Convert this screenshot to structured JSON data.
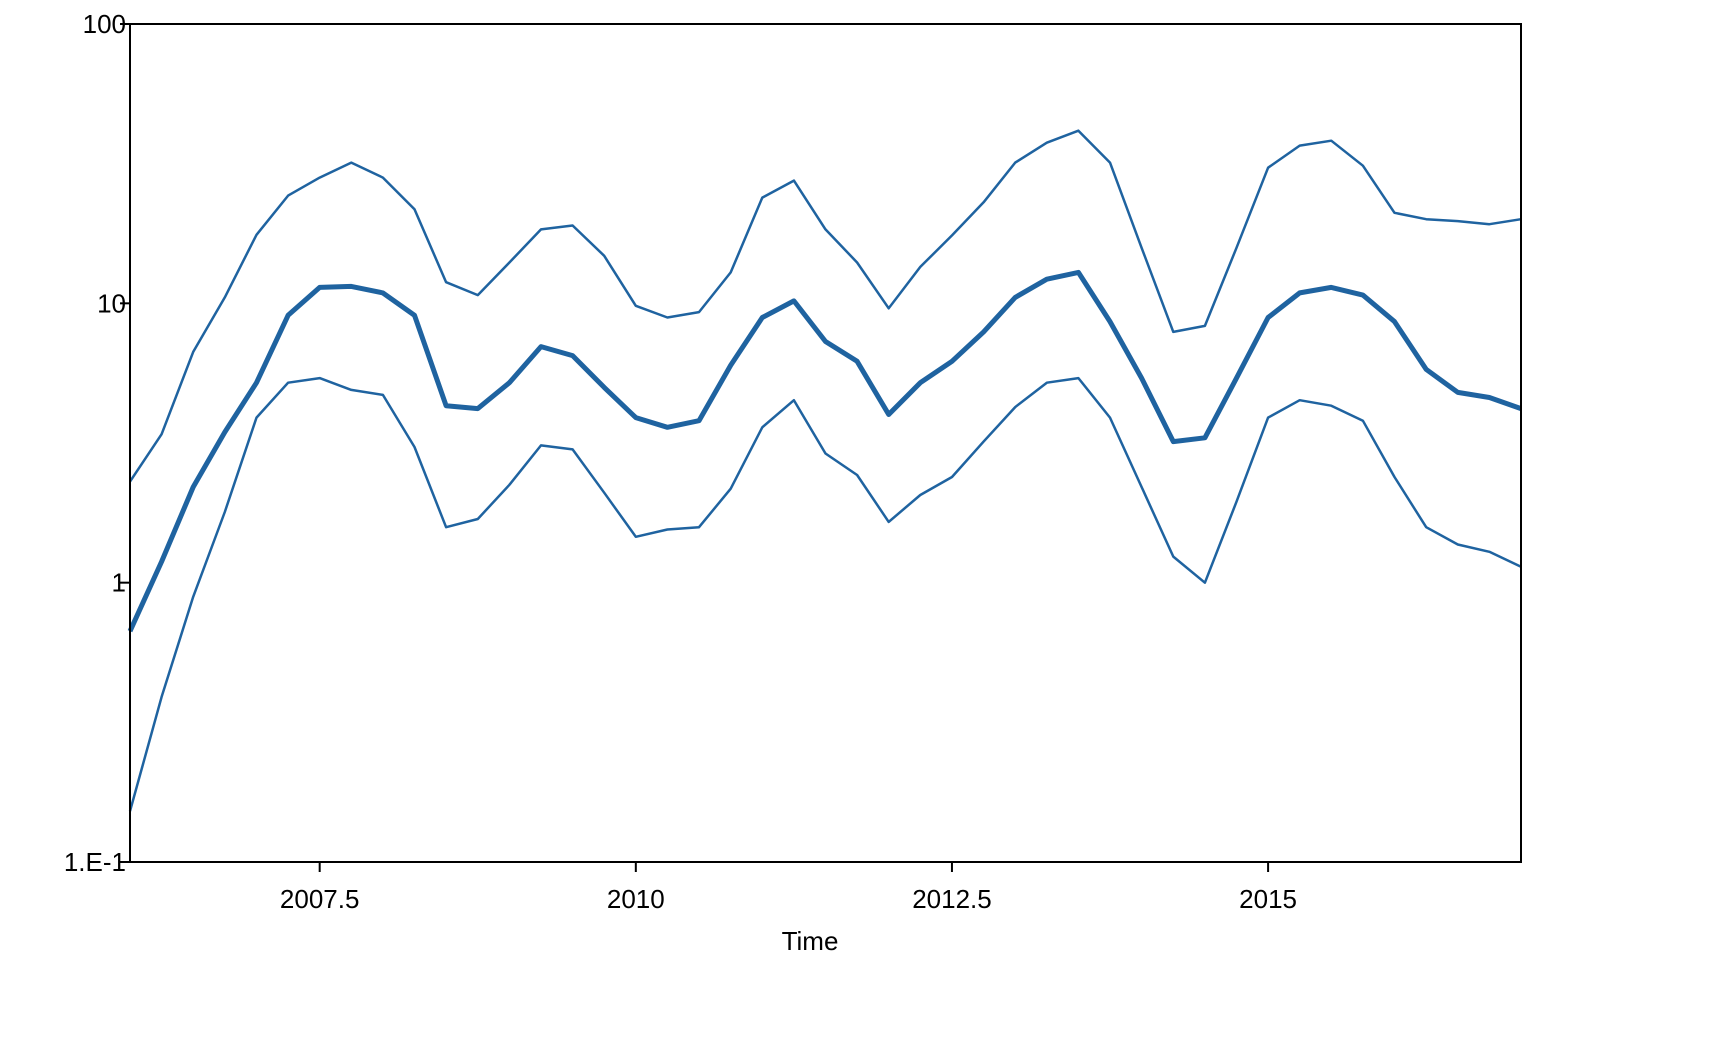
{
  "chart_data": {
    "type": "line",
    "xlabel": "Time",
    "x": [
      2006,
      2006.25,
      2006.5,
      2006.75,
      2007,
      2007.25,
      2007.5,
      2007.75,
      2008,
      2008.25,
      2008.5,
      2008.75,
      2009,
      2009.25,
      2009.5,
      2009.75,
      2010,
      2010.25,
      2010.5,
      2010.75,
      2011,
      2011.25,
      2011.5,
      2011.75,
      2012,
      2012.25,
      2012.5,
      2012.75,
      2013,
      2013.25,
      2013.5,
      2013.75,
      2014,
      2014.25,
      2014.5,
      2014.75,
      2015,
      2015.25,
      2015.5,
      2015.75,
      2016,
      2016.25,
      2016.5,
      2016.75,
      2017
    ],
    "series": [
      {
        "color": "#1f63a0",
        "line_width": 2.5,
        "values": [
          2.3,
          3.4,
          6.7,
          10.5,
          17.6,
          24.3,
          28.2,
          31.9,
          28.2,
          21.7,
          11.9,
          10.7,
          14.0,
          18.4,
          19.0,
          14.8,
          9.8,
          8.9,
          9.3,
          12.9,
          23.9,
          27.5,
          18.4,
          14.0,
          9.6,
          13.5,
          17.5,
          23.0,
          31.9,
          37.6,
          41.5,
          31.9,
          15.8,
          7.9,
          8.3,
          15.8,
          30.6,
          36.7,
          38.2,
          31.1,
          21.1,
          20.0,
          19.7,
          19.2,
          20.0
        ]
      },
      {
        "color": "#1f63a0",
        "line_width": 5,
        "values": [
          0.67,
          1.19,
          2.2,
          3.46,
          5.2,
          9.06,
          11.4,
          11.5,
          10.9,
          9.06,
          4.3,
          4.2,
          5.2,
          7.0,
          6.5,
          5.0,
          3.9,
          3.6,
          3.8,
          6.0,
          8.9,
          10.2,
          7.3,
          6.2,
          4.0,
          5.2,
          6.2,
          7.9,
          10.5,
          12.2,
          12.9,
          8.6,
          5.4,
          3.2,
          3.3,
          5.4,
          8.9,
          10.9,
          11.4,
          10.7,
          8.6,
          5.8,
          4.8,
          4.6,
          4.2
        ]
      },
      {
        "color": "#1f63a0",
        "line_width": 2.5,
        "values": [
          0.152,
          0.39,
          0.89,
          1.79,
          3.9,
          5.2,
          5.4,
          4.9,
          4.7,
          3.06,
          1.58,
          1.69,
          2.24,
          3.1,
          3.0,
          2.1,
          1.46,
          1.55,
          1.58,
          2.17,
          3.6,
          4.5,
          2.9,
          2.43,
          1.65,
          2.06,
          2.39,
          3.2,
          4.25,
          5.2,
          5.4,
          3.9,
          2.2,
          1.24,
          1.0,
          1.95,
          3.9,
          4.5,
          4.3,
          3.8,
          2.39,
          1.58,
          1.37,
          1.29,
          1.14
        ]
      }
    ],
    "xlim": [
      2006,
      2017
    ],
    "xticks": [
      2007.5,
      2010,
      2012.5,
      2015
    ],
    "ylim": [
      0.1,
      100
    ],
    "yticks": [
      {
        "value": 0.1,
        "label": "1.E-1"
      },
      1,
      10,
      100
    ],
    "yscale": "log",
    "grid": false
  }
}
